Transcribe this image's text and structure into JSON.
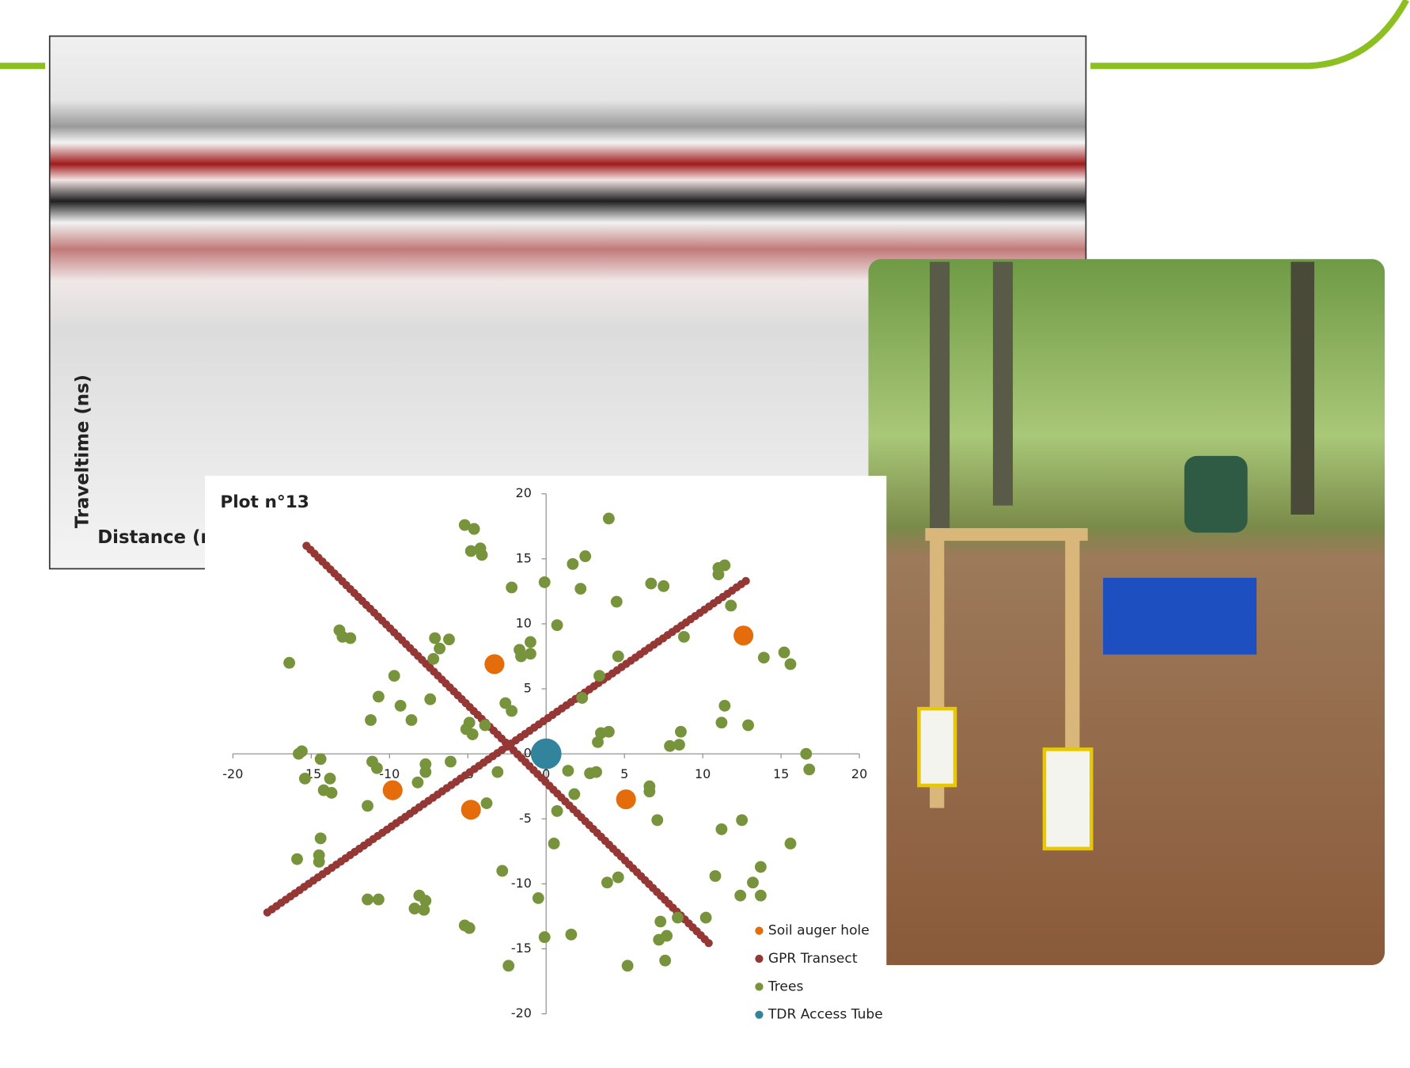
{
  "radargram": {
    "y_label": "Traveltime (ns)",
    "x_label": "Distance (m"
  },
  "chart_data": {
    "type": "scatter",
    "title": "Plot n°13",
    "xlim": [
      -20,
      20
    ],
    "ylim": [
      -20,
      20
    ],
    "xticks": [
      -20,
      -15,
      -10,
      -5,
      0,
      5,
      10,
      15,
      20
    ],
    "yticks": [
      -20,
      -15,
      -10,
      -5,
      0,
      5,
      10,
      15,
      20
    ],
    "series": [
      {
        "name": "Soil auger hole",
        "color": "#e46c0a",
        "x": [
          -3.3,
          12.6,
          -9.8,
          -4.8,
          5.1
        ],
        "y": [
          6.9,
          9.1,
          -2.8,
          -4.3,
          -3.5
        ]
      },
      {
        "name": "GPR Transect",
        "color": "#953735",
        "style": "dotted-line",
        "x": [
          -15.3,
          10.5,
          null,
          -17.8,
          13.0
        ],
        "y": [
          16.0,
          -14.7,
          null,
          -12.2,
          13.5
        ]
      },
      {
        "name": "Trees",
        "color": "#77933c",
        "x": [
          -16.4,
          -13.2,
          -13.0,
          -12.5,
          -10.7,
          -11.2,
          -9.7,
          -9.3,
          -8.6,
          -7.4,
          -7.2,
          -6.8,
          -7.1,
          -6.2,
          -5.2,
          -4.6,
          -4.8,
          -4.2,
          -4.1,
          -4.9,
          -5.1,
          -4.7,
          -3.9,
          -2.6,
          -2.2,
          -2.2,
          -0.1,
          0.7,
          -1.7,
          -1.6,
          -1.0,
          -1.0,
          1.7,
          2.5,
          2.2,
          4.0,
          4.5,
          4.6,
          3.4,
          2.3,
          6.7,
          7.5,
          8.8,
          3.5,
          4.0,
          3.3,
          7.9,
          8.5,
          8.6,
          11.0,
          11.4,
          11.0,
          11.8,
          11.4,
          11.2,
          12.9,
          15.2,
          15.6,
          13.9,
          16.6,
          16.8,
          -15.8,
          -15.6,
          -14.4,
          -15.4,
          -13.8,
          -14.2,
          -13.7,
          -11.1,
          -10.8,
          -11.4,
          -7.7,
          -7.7,
          -8.2,
          -6.1,
          -3.1,
          -3.8,
          1.4,
          2.8,
          3.2,
          1.8,
          0.7,
          0.5,
          6.6,
          6.6,
          7.1,
          11.2,
          12.5,
          15.6,
          -14.4,
          -15.9,
          -14.5,
          -14.5,
          -11.4,
          -10.7,
          -8.1,
          -7.7,
          -8.4,
          -7.8,
          -2.8,
          -0.5,
          -5.2,
          -4.9,
          -0.1,
          1.6,
          -2.4,
          3.9,
          4.6,
          5.2,
          7.3,
          7.7,
          7.2,
          7.6,
          8.4,
          10.2,
          10.8,
          13.2,
          13.7,
          12.4,
          13.7
        ],
        "y": [
          7.0,
          9.5,
          9.0,
          8.9,
          4.4,
          2.6,
          6.0,
          3.7,
          2.6,
          4.2,
          7.3,
          8.1,
          8.9,
          8.8,
          17.6,
          17.3,
          15.6,
          15.8,
          15.3,
          2.4,
          1.9,
          1.5,
          2.2,
          3.9,
          3.3,
          12.8,
          13.2,
          9.9,
          8.0,
          7.5,
          8.6,
          7.7,
          14.6,
          15.2,
          12.7,
          18.1,
          11.7,
          7.5,
          6.0,
          4.3,
          13.1,
          12.9,
          9.0,
          1.6,
          1.7,
          0.9,
          0.6,
          0.7,
          1.7,
          13.8,
          14.5,
          14.3,
          11.4,
          3.7,
          2.4,
          2.2,
          7.8,
          6.9,
          7.4,
          0,
          -1.2,
          0,
          0.2,
          -0.4,
          -1.9,
          -1.9,
          -2.8,
          -3.0,
          -0.6,
          -1.1,
          -4.0,
          -0.8,
          -1.4,
          -2.2,
          -0.6,
          -1.4,
          -3.8,
          -1.3,
          -1.5,
          -1.4,
          -3.1,
          -4.4,
          -6.9,
          -2.5,
          -2.9,
          -5.1,
          -5.8,
          -5.1,
          -6.9,
          -6.5,
          -8.1,
          -7.8,
          -8.3,
          -11.2,
          -11.2,
          -10.9,
          -11.3,
          -11.9,
          -12.0,
          -9.0,
          -11.1,
          -13.2,
          -13.4,
          -14.1,
          -13.9,
          -16.3,
          -9.9,
          -9.5,
          -16.3,
          -12.9,
          -14.0,
          -14.3,
          -15.9,
          -12.6,
          -12.6,
          -9.4,
          -9.9,
          -8.7,
          -10.9,
          -10.9
        ]
      },
      {
        "name": "TDR Access Tube",
        "color": "#31849b",
        "x": [
          0
        ],
        "y": [
          0
        ]
      }
    ]
  }
}
